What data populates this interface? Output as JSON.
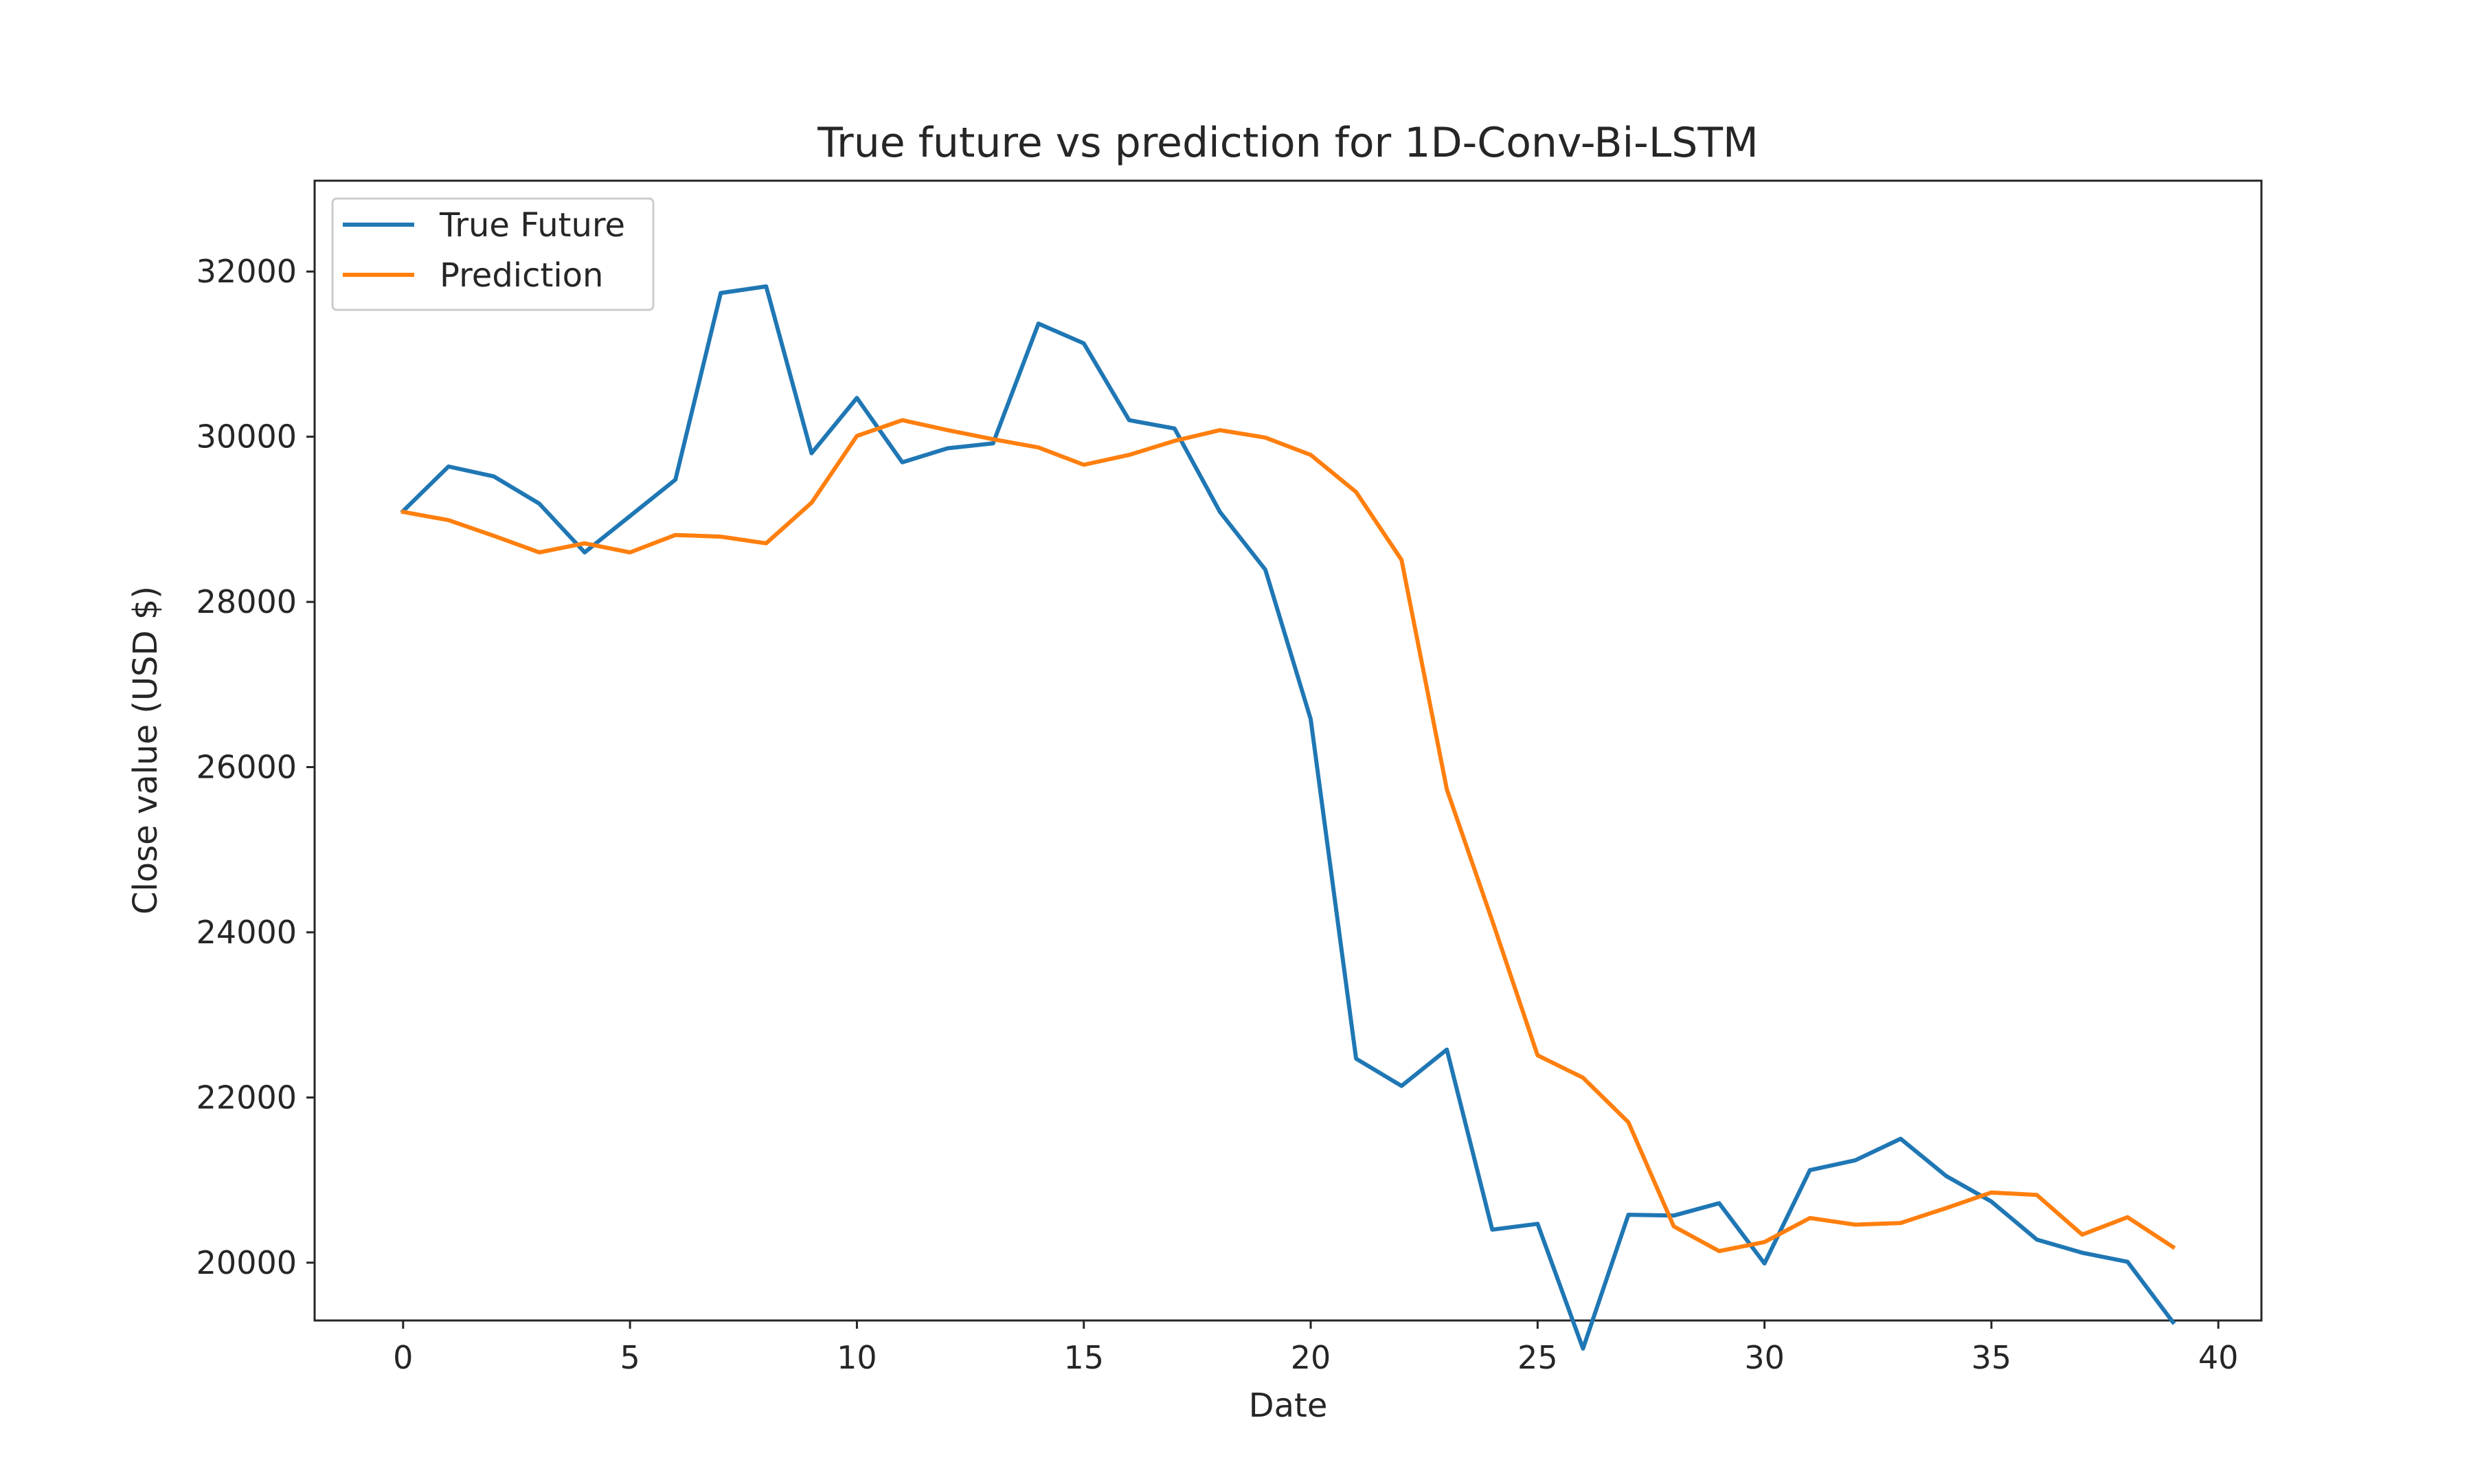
{
  "chart_data": {
    "type": "line",
    "title": "True future vs prediction for 1D-Conv-Bi-LSTM",
    "xlabel": "Date",
    "ylabel": "Close value (USD $)",
    "xlim": [
      -1.95,
      40.95
    ],
    "ylim": [
      19300,
      33100
    ],
    "xticks": [
      0,
      5,
      10,
      15,
      20,
      25,
      30,
      35,
      40
    ],
    "yticks": [
      20000,
      22000,
      24000,
      26000,
      28000,
      30000,
      32000
    ],
    "xtick_labels": [
      "0",
      "5",
      "10",
      "15",
      "20",
      "25",
      "30",
      "35",
      "40"
    ],
    "ytick_labels": [
      "20000",
      "22000",
      "24000",
      "26000",
      "28000",
      "30000",
      "32000"
    ],
    "grid": false,
    "legend_position": "top-left",
    "x": [
      0,
      1,
      2,
      3,
      4,
      5,
      6,
      7,
      8,
      9,
      10,
      11,
      12,
      13,
      14,
      15,
      16,
      17,
      18,
      19,
      20,
      21,
      22,
      23,
      24,
      25,
      26,
      27,
      28,
      29,
      30,
      31,
      32,
      33,
      34,
      35,
      36,
      37,
      38,
      39
    ],
    "series": [
      {
        "name": "True Future",
        "color": "#1f77b4",
        "values": [
          29100,
          29640,
          29520,
          29190,
          28600,
          29040,
          29480,
          31740,
          31820,
          29800,
          30470,
          29690,
          29860,
          29920,
          31370,
          31130,
          30200,
          30100,
          29090,
          28390,
          26580,
          22470,
          22140,
          22580,
          20400,
          20470,
          18960,
          20580,
          20570,
          20720,
          19990,
          21120,
          21240,
          21500,
          21050,
          20740,
          20280,
          20120,
          20010,
          19280
        ]
      },
      {
        "name": "Prediction",
        "color": "#ff7f0e",
        "values": [
          29090,
          28990,
          28800,
          28600,
          28710,
          28600,
          28810,
          28790,
          28710,
          29200,
          30010,
          30200,
          30080,
          29970,
          29870,
          29660,
          29780,
          29950,
          30080,
          29990,
          29780,
          29330,
          28510,
          25730,
          24140,
          22510,
          22240,
          21700,
          20440,
          20140,
          20250,
          20540,
          20460,
          20480,
          20660,
          20850,
          20820,
          20340,
          20550,
          20190
        ]
      }
    ]
  }
}
